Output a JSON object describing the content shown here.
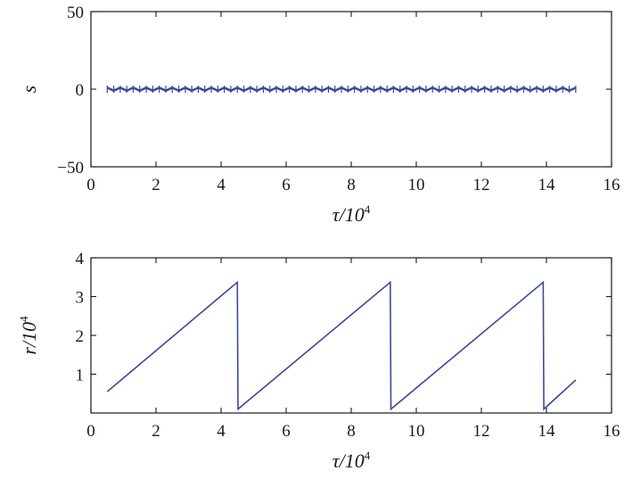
{
  "chart_data": [
    {
      "type": "line",
      "ylabel": "s",
      "xlabel_main": "τ/10",
      "xlabel_sup": "4",
      "xlim": [
        0,
        16
      ],
      "ylim": [
        -50,
        50
      ],
      "xticks": [
        0,
        2,
        4,
        6,
        8,
        10,
        12,
        14,
        16
      ],
      "yticks": [
        -50,
        0,
        50
      ],
      "ytick_labels": [
        "−50",
        "0",
        "50"
      ],
      "grid": false,
      "color": "#3b4a98",
      "series": [
        {
          "x_range": [
            0.5,
            14.9
          ],
          "values_description_free": true,
          "x": [
            0.5,
            0.7,
            0.9,
            1.1,
            1.3,
            1.5,
            1.7,
            1.9,
            2.1,
            2.3,
            2.5,
            2.7,
            2.9,
            3.1,
            3.3,
            3.5,
            3.7,
            3.9,
            4.1,
            4.3,
            4.5,
            4.7,
            4.9,
            5.1,
            5.3,
            5.5,
            5.7,
            5.9,
            6.1,
            6.3,
            6.5,
            6.7,
            6.9,
            7.1,
            7.3,
            7.5,
            7.7,
            7.9,
            8.1,
            8.3,
            8.5,
            8.7,
            8.9,
            9.1,
            9.3,
            9.5,
            9.7,
            9.9,
            10.1,
            10.3,
            10.5,
            10.7,
            10.9,
            11.1,
            11.3,
            11.5,
            11.7,
            11.9,
            12.1,
            12.3,
            12.5,
            12.7,
            12.9,
            13.1,
            13.3,
            13.5,
            13.7,
            13.9,
            14.1,
            14.3,
            14.5,
            14.7,
            14.9
          ],
          "y": [
            1,
            -1,
            1,
            -1,
            1,
            -1,
            1,
            -1,
            1,
            -1,
            1,
            -1,
            1,
            -1,
            1,
            -1,
            1,
            -1,
            1,
            -1,
            1,
            -1,
            1,
            -1,
            1,
            -1,
            1,
            -1,
            1,
            -1,
            1,
            -1,
            1,
            -1,
            1,
            -1,
            1,
            -1,
            1,
            -1,
            1,
            -1,
            1,
            -1,
            1,
            -1,
            1,
            -1,
            1,
            -1,
            1,
            -1,
            1,
            -1,
            1,
            -1,
            1,
            -1,
            1,
            -1,
            1,
            -1,
            1,
            -1,
            1,
            -1,
            1,
            -1,
            1,
            -1,
            1,
            -1,
            1
          ]
        }
      ]
    },
    {
      "type": "line",
      "ylabel_main": "r/10",
      "ylabel_sup": "4",
      "xlabel_main": "τ/10",
      "xlabel_sup": "4",
      "xlim": [
        0,
        16
      ],
      "ylim": [
        0,
        4
      ],
      "xticks": [
        0,
        2,
        4,
        6,
        8,
        10,
        12,
        14,
        16
      ],
      "yticks": [
        1,
        2,
        3,
        4
      ],
      "grid": false,
      "color": "#3b4a98",
      "series": [
        {
          "x": [
            0.5,
            4.5,
            4.52,
            9.2,
            9.22,
            13.9,
            13.92,
            14.9
          ],
          "y": [
            0.55,
            3.37,
            0.1,
            3.37,
            0.1,
            3.37,
            0.1,
            0.85
          ]
        }
      ]
    }
  ]
}
